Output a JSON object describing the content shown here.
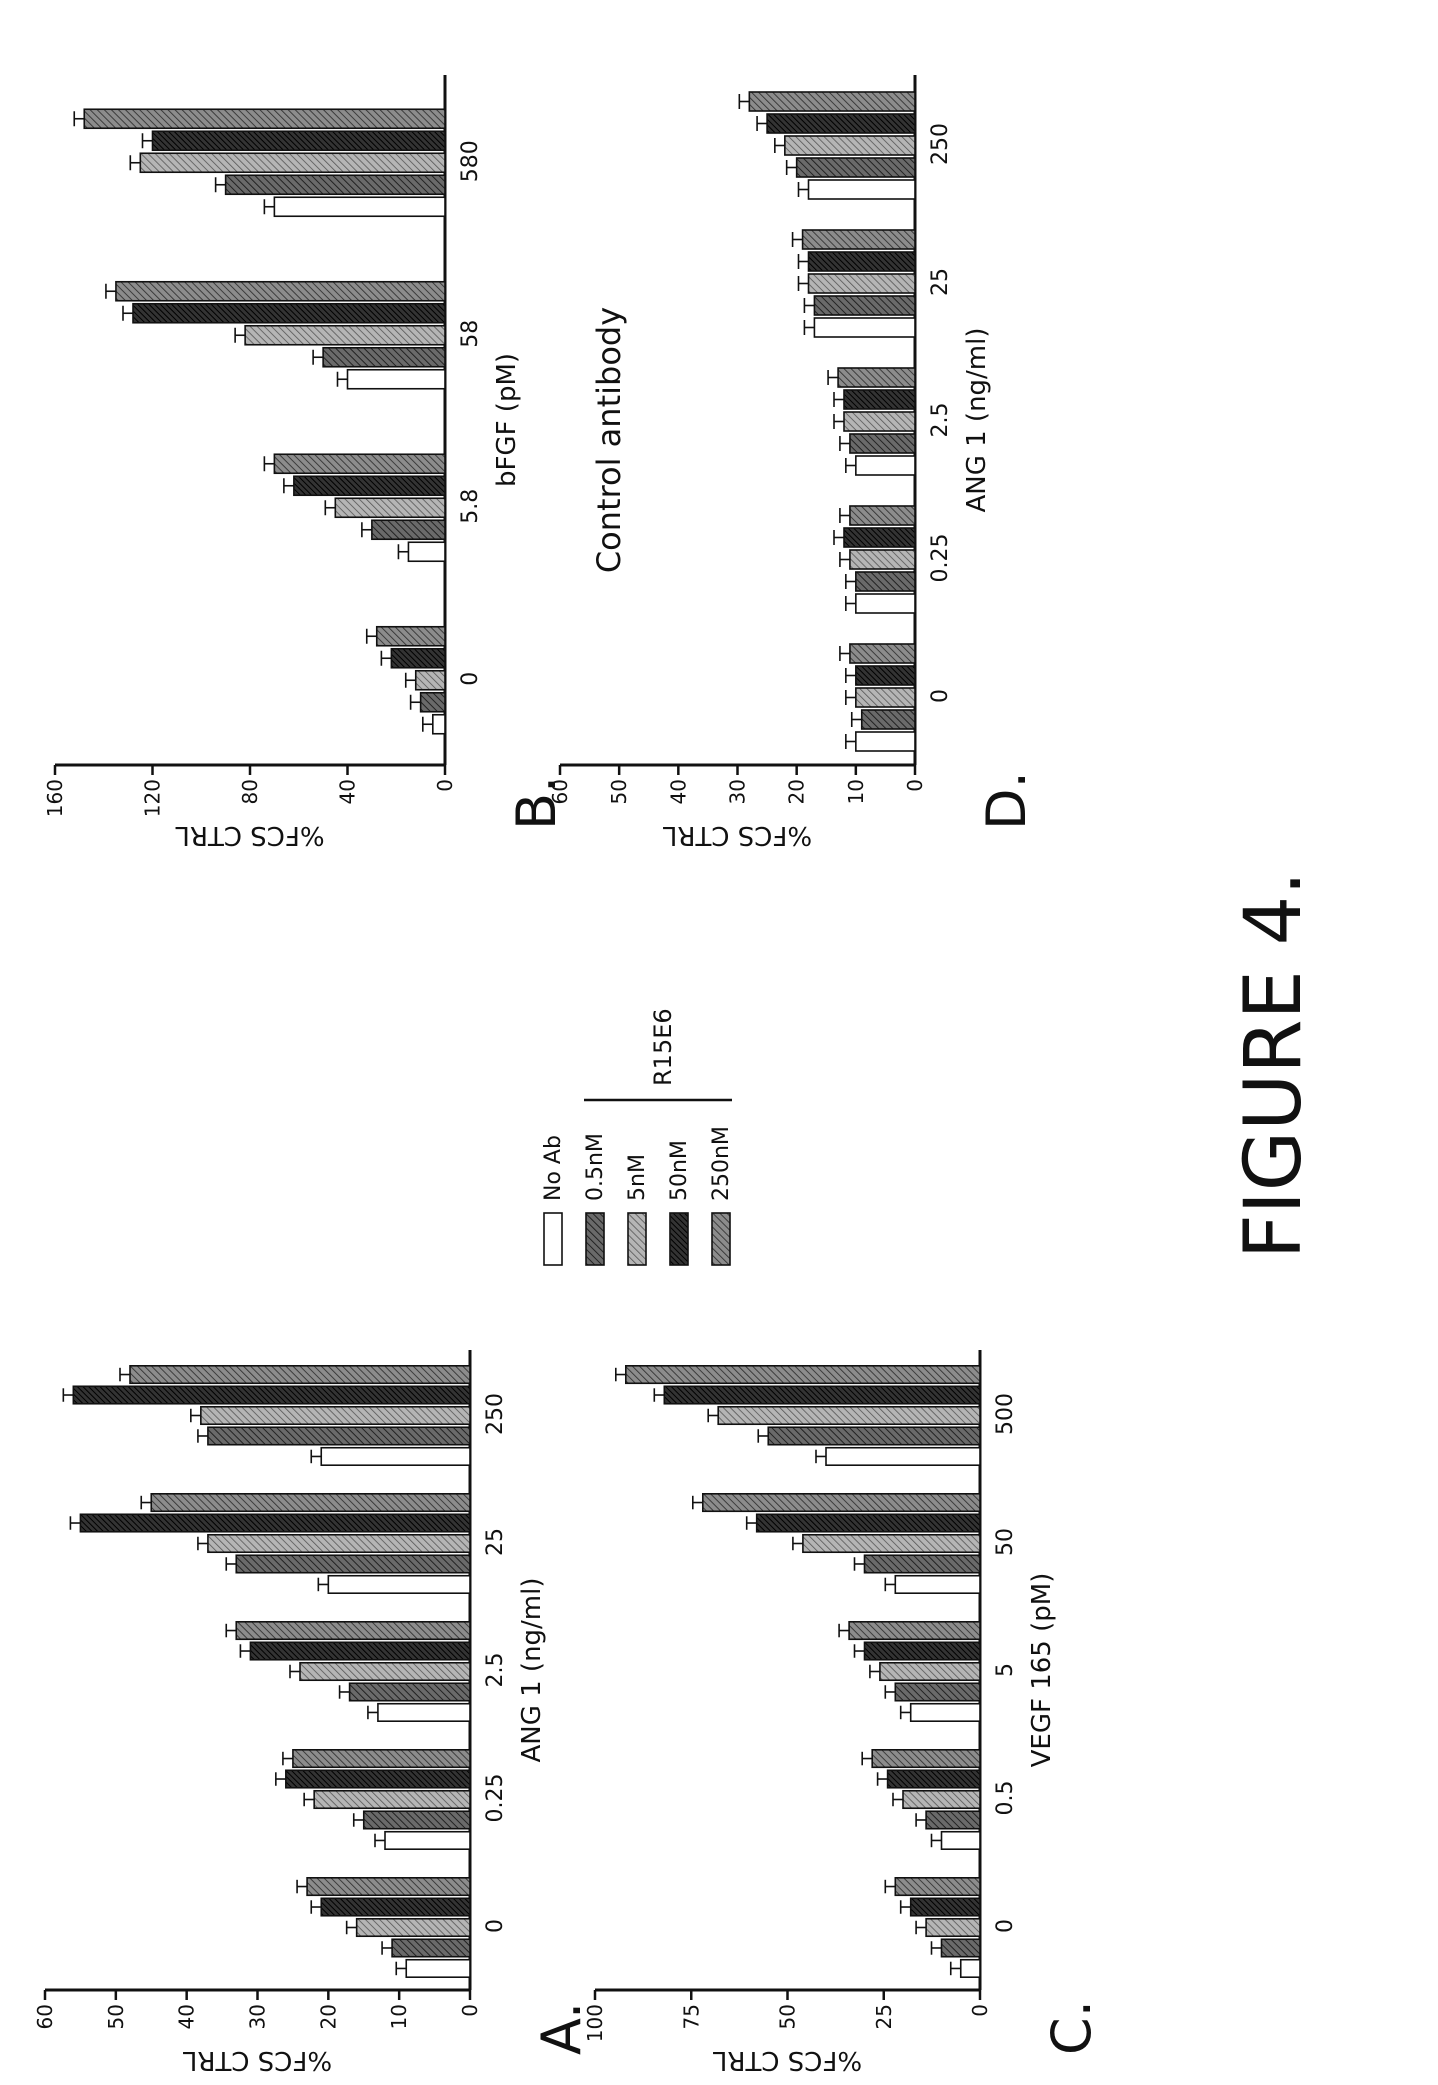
{
  "figure": {
    "caption": "FIGURE 4."
  },
  "legend": {
    "items": [
      "No Ab",
      "0.5nM",
      "5nM",
      "50nM",
      "250nM"
    ],
    "bracket_label": "R15E6"
  },
  "colors": {
    "ink": "#111111",
    "noab": "#ffffff",
    "c05": "#555555",
    "c5": "#9a9a9a",
    "c50": "#2a2a2a",
    "c250": "#777777"
  },
  "chart_data": [
    {
      "panel": "A.",
      "type": "bar",
      "xlabel": "ANG 1 (ng/ml)",
      "ylabel": "%FCS CTRL",
      "ylim": [
        0,
        60
      ],
      "yticks": [
        "0",
        "10",
        "20",
        "30",
        "40",
        "50",
        "60"
      ],
      "categories": [
        "0",
        "0.25",
        "2.5",
        "25",
        "250"
      ],
      "series": [
        {
          "name": "No Ab",
          "values": [
            9,
            12,
            13,
            20,
            21
          ]
        },
        {
          "name": "0.5nM",
          "values": [
            11,
            15,
            17,
            33,
            37
          ]
        },
        {
          "name": "5nM",
          "values": [
            16,
            22,
            24,
            37,
            38
          ]
        },
        {
          "name": "50nM",
          "values": [
            21,
            26,
            31,
            55,
            56
          ]
        },
        {
          "name": "250nM",
          "values": [
            23,
            25,
            33,
            45,
            48
          ]
        }
      ]
    },
    {
      "panel": "B.",
      "type": "bar",
      "xlabel": "bFGF (pM)",
      "ylabel": "%FCS CTRL",
      "ylim": [
        0,
        160
      ],
      "yticks": [
        "0",
        "40",
        "80",
        "120",
        "160"
      ],
      "categories": [
        "0",
        "5.8",
        "58",
        "580"
      ],
      "series": [
        {
          "name": "No Ab",
          "values": [
            5,
            15,
            40,
            70
          ]
        },
        {
          "name": "0.5nM",
          "values": [
            10,
            30,
            50,
            90
          ]
        },
        {
          "name": "5nM",
          "values": [
            12,
            45,
            82,
            125
          ]
        },
        {
          "name": "50nM",
          "values": [
            22,
            62,
            128,
            120
          ]
        },
        {
          "name": "250nM",
          "values": [
            28,
            70,
            135,
            148
          ]
        }
      ]
    },
    {
      "panel": "C.",
      "type": "bar",
      "xlabel": "VEGF 165 (pM)",
      "ylabel": "%FCS CTRL",
      "ylim": [
        0,
        100
      ],
      "yticks": [
        "0",
        "25",
        "50",
        "75",
        "100"
      ],
      "categories": [
        "0",
        "0.5",
        "5",
        "50",
        "500"
      ],
      "series": [
        {
          "name": "No Ab",
          "values": [
            5,
            10,
            18,
            22,
            40
          ]
        },
        {
          "name": "0.5nM",
          "values": [
            10,
            14,
            22,
            30,
            55
          ]
        },
        {
          "name": "5nM",
          "values": [
            14,
            20,
            26,
            46,
            68
          ]
        },
        {
          "name": "50nM",
          "values": [
            18,
            24,
            30,
            58,
            82
          ]
        },
        {
          "name": "250nM",
          "values": [
            22,
            28,
            34,
            72,
            92
          ]
        }
      ]
    },
    {
      "panel": "D.",
      "type": "bar",
      "xlabel": "ANG 1 (ng/ml)",
      "ylabel": "%FCS CTRL",
      "ylim": [
        0,
        60
      ],
      "yticks": [
        "0",
        "10",
        "20",
        "30",
        "40",
        "50",
        "60"
      ],
      "categories": [
        "0",
        "0.25",
        "2.5",
        "25",
        "250"
      ],
      "annotation": "Control antibody",
      "series": [
        {
          "name": "No Ab",
          "values": [
            10,
            10,
            10,
            17,
            18
          ]
        },
        {
          "name": "0.5nM",
          "values": [
            9,
            10,
            11,
            17,
            20
          ]
        },
        {
          "name": "5nM",
          "values": [
            10,
            11,
            12,
            18,
            22
          ]
        },
        {
          "name": "50nM",
          "values": [
            10,
            12,
            12,
            18,
            25
          ]
        },
        {
          "name": "250nM",
          "values": [
            11,
            11,
            13,
            19,
            28
          ]
        }
      ]
    }
  ]
}
